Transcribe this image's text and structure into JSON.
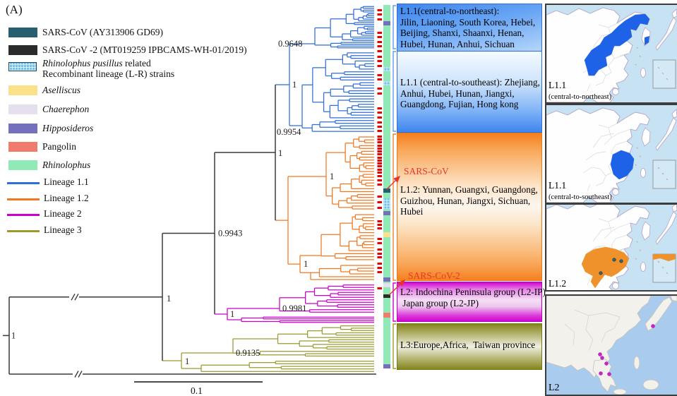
{
  "panel_label": "(A)",
  "legend": {
    "strains": [
      {
        "label": "SARS-CoV  (AY313906 GD69)",
        "color": "#265f70"
      },
      {
        "label": "SARS-CoV -2 (MT019259 IPBCAMS-WH-01/2019)",
        "color": "#2b2b2b"
      },
      {
        "label_species": "Rhinolophus pusillus",
        "label_suffix": " related",
        "label_line2": "Recombinant lineage (L-R) strains",
        "color": "#6fc0ea",
        "pattern": "hatched"
      }
    ],
    "hosts": [
      {
        "label": "Aselliscus",
        "color": "#fce08a",
        "italic": true
      },
      {
        "label": "Chaerephon",
        "color": "#e6e0ee",
        "italic": true
      },
      {
        "label": "Hipposideros",
        "color": "#7570bd",
        "italic": true
      },
      {
        "label": "Pangolin",
        "color": "#ee7b6b",
        "italic": false
      },
      {
        "label": "Rhinolophus",
        "color": "#8feab5",
        "italic": true
      }
    ],
    "lineages": [
      {
        "label": "Lineage 1.1",
        "color": "#2f6fd8"
      },
      {
        "label": "Lineage 1.2",
        "color": "#f07820"
      },
      {
        "label": "Lineage 2",
        "color": "#cc00cc"
      },
      {
        "label": "Lineage 3",
        "color": "#9a9a2e"
      }
    ]
  },
  "tree": {
    "scale_label": "0.1",
    "tip_marker_color": "#e60000",
    "backbone_color": "#3a3a3a",
    "support": {
      "root": "1",
      "basal": "1",
      "l1_l2": "0.9943",
      "l1": "1",
      "l11": "1",
      "l11_ne": "0.9648",
      "l11_se": "0.9954",
      "l12_a": "1",
      "l12_b": "1",
      "l2": "1",
      "l2_inner": "0.9981",
      "l3": "1",
      "l3_inner": "0.9135"
    },
    "labels": {
      "sars_cov": "SARS-CoV",
      "sars_cov_2": "SARS-CoV-2"
    }
  },
  "blocks": [
    {
      "lines": [
        "L1.1(central-to-northeast):",
        "Jilin, Liaoning, South Korea, Hebei,",
        "Beijing, Shanxi, Shaanxi, Henan,",
        "Hubei, Hunan, Anhui, Sichuan"
      ]
    },
    {
      "lines": [
        "L1.1 (central-to-southeast): Zhejiang,",
        "Anhui, Hubei, Hunan, Jiangxi,",
        "Guangdong, Fujian, Hong kong"
      ]
    },
    {
      "lines": [
        "L1.2: Yunnan, Guangxi, Guangdong,",
        "Guizhou, Hunan, Jiangxi, Sichuan,",
        "Hubei"
      ]
    },
    {
      "lines": [
        "L2: Indochina Peninsula group (L2-IP)",
        " Japan group (L2-JP)"
      ]
    },
    {
      "lines": [
        "L3:Europe,Africa,  Taiwan province"
      ]
    }
  ],
  "maps": [
    {
      "title": "L1.1",
      "subtitle": "(central-to-northeast)",
      "highlight_color": "#1e62e8"
    },
    {
      "title": "L1.1",
      "subtitle": "(central-to-southeast)",
      "highlight_color": "#1e62e8"
    },
    {
      "title": "L1.2",
      "subtitle": "",
      "highlight_color": "#f0922c",
      "dot_color": "#2a6f80"
    },
    {
      "title": "L2",
      "subtitle": "",
      "dot_color": "#cc22cc"
    }
  ]
}
